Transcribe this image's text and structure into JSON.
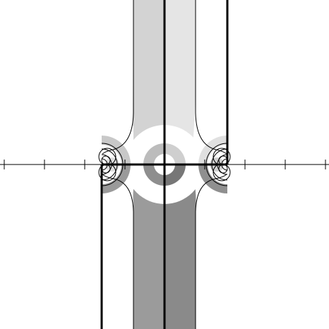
{
  "figure": {
    "background": "#ffffff",
    "ink": "#000000",
    "shades": {
      "upper_left": "#d3d3d3",
      "upper_right": "#e5e5e5",
      "lower_left": "#9b9b9b",
      "lower_right": "#8a8a8a",
      "ring_light": "#ffffff",
      "ring_dark": "#a9a9a9"
    },
    "ticks_visible": 9,
    "labels": []
  }
}
